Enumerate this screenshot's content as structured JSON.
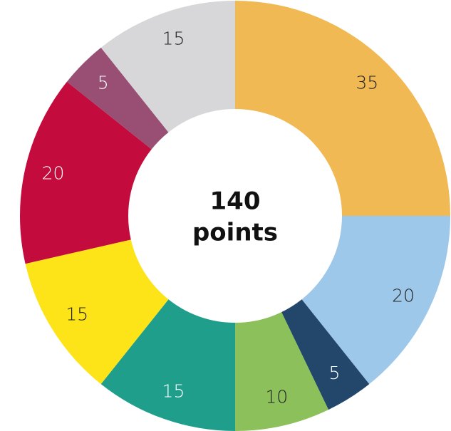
{
  "chart_data": {
    "type": "donut",
    "values": [
      35,
      20,
      5,
      10,
      15,
      15,
      20,
      5,
      15
    ],
    "colors": [
      "#f0b954",
      "#9dc8e9",
      "#22476b",
      "#8bc05a",
      "#1f9e8c",
      "#fde418",
      "#c30c3d",
      "#984f73",
      "#d7d7d9"
    ],
    "label_colors": [
      "#222222",
      "#222222",
      "#ffffff",
      "#222222",
      "#ffffff",
      "#222222",
      "#ffffff",
      "#ffffff",
      "#222222"
    ],
    "total": 140,
    "total_unit": "points"
  }
}
